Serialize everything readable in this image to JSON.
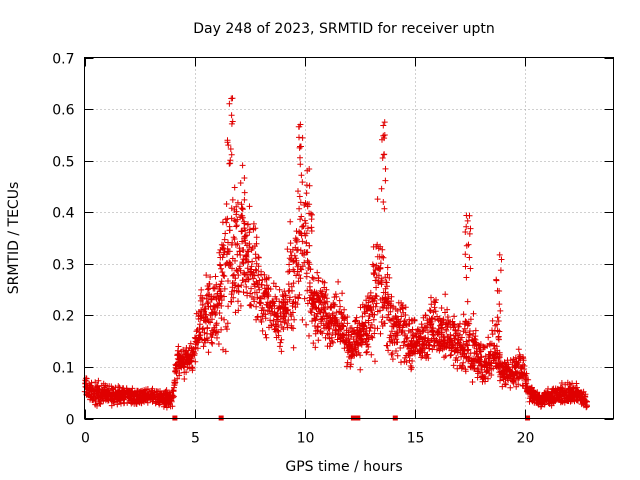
{
  "chart_data": {
    "type": "scatter",
    "title": "Day 248 of 2023, SRMTID for receiver uptn",
    "xlabel": "GPS time / hours",
    "ylabel": "SRMTID / TECUs",
    "xlim": [
      0,
      24
    ],
    "ylim": [
      0,
      0.7
    ],
    "x_ticks": [
      0,
      5,
      10,
      15,
      20
    ],
    "x_tick_labels": [
      "0",
      "5",
      "10",
      "15",
      "20"
    ],
    "y_ticks": [
      0,
      0.1,
      0.2,
      0.3,
      0.4,
      0.5,
      0.6,
      0.7
    ],
    "y_tick_labels": [
      "0",
      "0.1",
      "0.2",
      "0.3",
      "0.4",
      "0.5",
      "0.6",
      "0.7"
    ],
    "grid": true,
    "marker": "+",
    "color": "#e00000",
    "point_spacing_hours": 0.0167,
    "envelope": {
      "description": "Approximate centre and spread of the SRMTID point cloud versus GPS time",
      "x": [
        0.0,
        0.3,
        0.6,
        1.0,
        1.5,
        2.0,
        2.5,
        3.0,
        3.5,
        4.0,
        4.2,
        4.5,
        5.0,
        5.3,
        5.6,
        6.0,
        6.3,
        6.5,
        6.8,
        7.2,
        7.6,
        8.0,
        8.5,
        9.0,
        9.3,
        9.7,
        10.0,
        10.4,
        10.8,
        11.2,
        11.6,
        12.0,
        12.5,
        13.0,
        13.3,
        13.6,
        14.0,
        14.4,
        14.8,
        15.2,
        15.6,
        16.0,
        16.5,
        17.0,
        17.4,
        17.8,
        18.2,
        18.6,
        19.0,
        19.4,
        19.8,
        20.1,
        20.4,
        20.8,
        21.2,
        21.6,
        22.0,
        22.4,
        22.8
      ],
      "center": [
        0.06,
        0.05,
        0.05,
        0.045,
        0.045,
        0.045,
        0.04,
        0.045,
        0.04,
        0.04,
        0.11,
        0.11,
        0.13,
        0.19,
        0.21,
        0.21,
        0.28,
        0.33,
        0.3,
        0.33,
        0.3,
        0.24,
        0.21,
        0.2,
        0.27,
        0.3,
        0.32,
        0.22,
        0.22,
        0.18,
        0.2,
        0.14,
        0.16,
        0.2,
        0.28,
        0.24,
        0.17,
        0.18,
        0.14,
        0.15,
        0.17,
        0.18,
        0.16,
        0.14,
        0.15,
        0.12,
        0.1,
        0.14,
        0.09,
        0.09,
        0.1,
        0.06,
        0.04,
        0.04,
        0.045,
        0.045,
        0.05,
        0.045,
        0.03
      ],
      "spread": [
        0.03,
        0.03,
        0.03,
        0.025,
        0.025,
        0.02,
        0.02,
        0.02,
        0.02,
        0.02,
        0.04,
        0.04,
        0.05,
        0.08,
        0.1,
        0.1,
        0.18,
        0.22,
        0.2,
        0.16,
        0.14,
        0.1,
        0.08,
        0.1,
        0.16,
        0.2,
        0.2,
        0.12,
        0.1,
        0.08,
        0.08,
        0.06,
        0.07,
        0.1,
        0.18,
        0.14,
        0.08,
        0.1,
        0.06,
        0.07,
        0.08,
        0.1,
        0.08,
        0.07,
        0.1,
        0.06,
        0.05,
        0.09,
        0.04,
        0.04,
        0.05,
        0.04,
        0.02,
        0.02,
        0.025,
        0.03,
        0.03,
        0.03,
        0.02
      ]
    },
    "peaks": [
      {
        "x": 6.6,
        "y": 0.66
      },
      {
        "x": 7.2,
        "y": 0.5
      },
      {
        "x": 9.8,
        "y": 0.58
      },
      {
        "x": 10.2,
        "y": 0.49
      },
      {
        "x": 13.6,
        "y": 0.58
      },
      {
        "x": 17.4,
        "y": 0.4
      },
      {
        "x": 18.8,
        "y": 0.32
      }
    ],
    "baseline_markers": {
      "description": "Small red square markers drawn on the x-axis (y = 0)",
      "x": [
        4.1,
        6.2,
        12.2,
        12.4,
        14.1,
        20.1
      ]
    }
  }
}
